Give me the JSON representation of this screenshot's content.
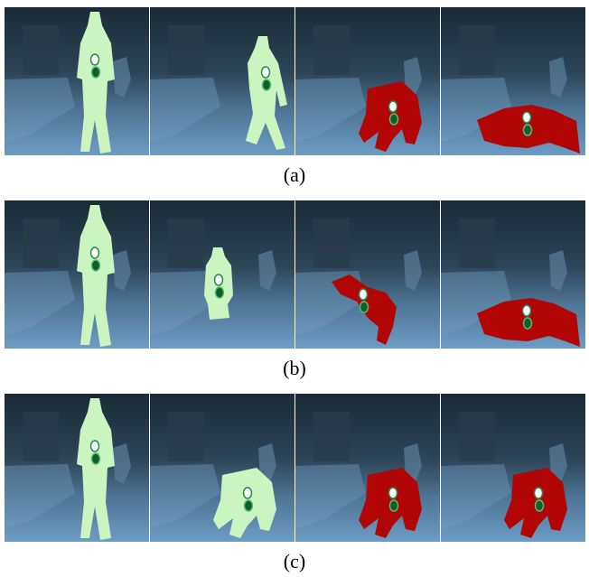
{
  "figure": {
    "rows": [
      {
        "caption": "(a)"
      },
      {
        "caption": "(b)"
      },
      {
        "caption": "(c)"
      }
    ]
  }
}
